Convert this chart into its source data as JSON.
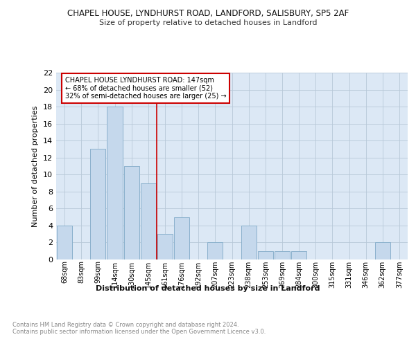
{
  "title1": "CHAPEL HOUSE, LYNDHURST ROAD, LANDFORD, SALISBURY, SP5 2AF",
  "title2": "Size of property relative to detached houses in Landford",
  "xlabel": "Distribution of detached houses by size in Landford",
  "ylabel": "Number of detached properties",
  "categories": [
    "68sqm",
    "83sqm",
    "99sqm",
    "114sqm",
    "130sqm",
    "145sqm",
    "161sqm",
    "176sqm",
    "192sqm",
    "207sqm",
    "223sqm",
    "238sqm",
    "253sqm",
    "269sqm",
    "284sqm",
    "300sqm",
    "315sqm",
    "331sqm",
    "346sqm",
    "362sqm",
    "377sqm"
  ],
  "values": [
    4,
    0,
    13,
    18,
    11,
    9,
    3,
    5,
    0,
    2,
    0,
    4,
    1,
    1,
    1,
    0,
    0,
    0,
    0,
    2,
    0
  ],
  "bar_color": "#c5d8ec",
  "bar_edge_color": "#8ab0cc",
  "ylim": [
    0,
    22
  ],
  "yticks": [
    0,
    2,
    4,
    6,
    8,
    10,
    12,
    14,
    16,
    18,
    20,
    22
  ],
  "vline_x": 5.5,
  "vline_color": "#cc0000",
  "annotation_text": "CHAPEL HOUSE LYNDHURST ROAD: 147sqm\n← 68% of detached houses are smaller (52)\n32% of semi-detached houses are larger (25) →",
  "annotation_box_color": "#ffffff",
  "annotation_box_edge": "#cc0000",
  "footer_text": "Contains HM Land Registry data © Crown copyright and database right 2024.\nContains public sector information licensed under the Open Government Licence v3.0.",
  "bg_color": "#dce8f5",
  "fig_bg": "#ffffff"
}
